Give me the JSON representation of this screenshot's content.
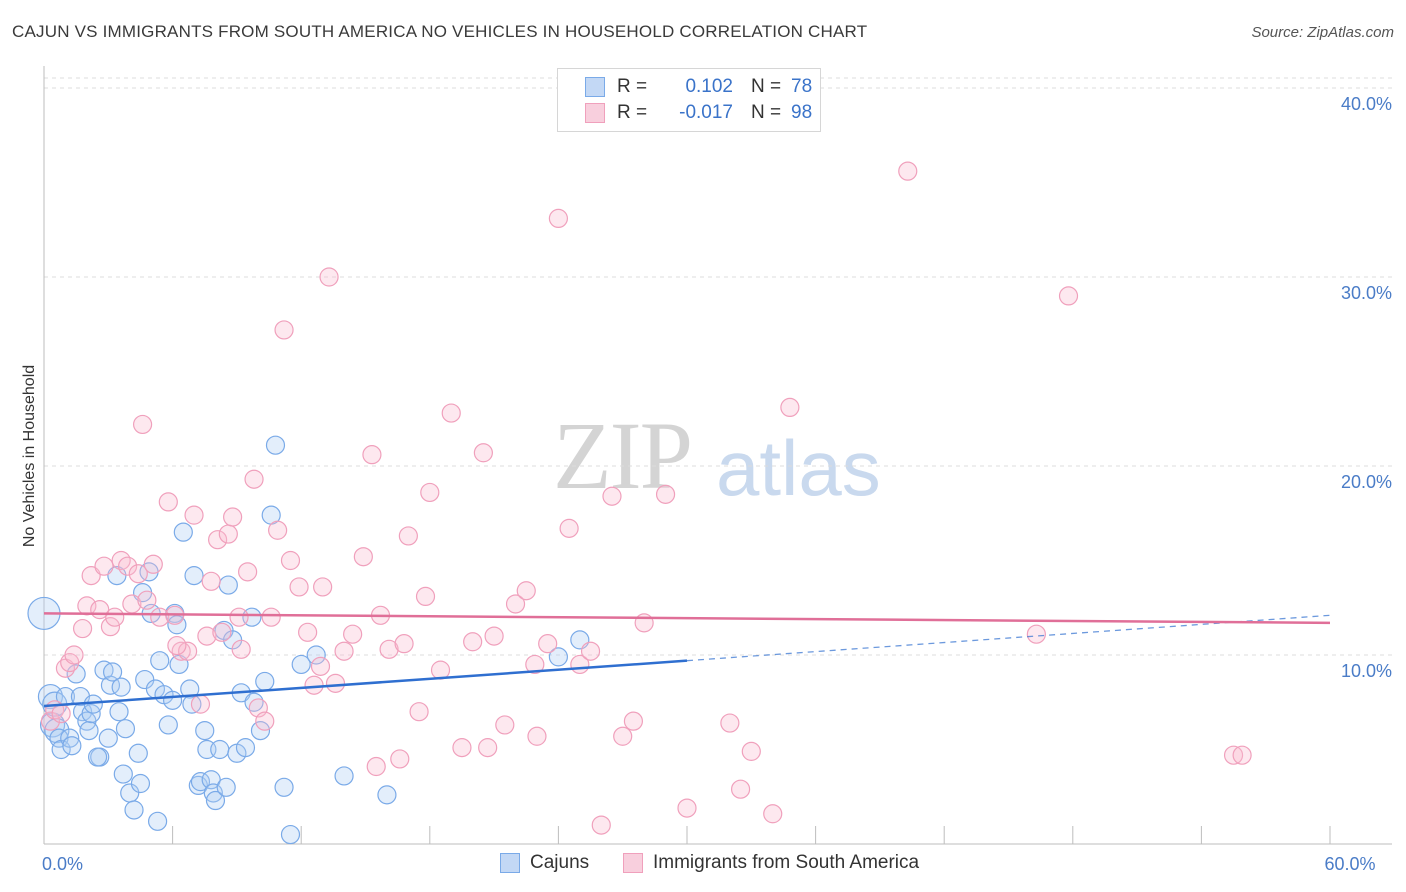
{
  "title": "CAJUN VS IMMIGRANTS FROM SOUTH AMERICA NO VEHICLES IN HOUSEHOLD CORRELATION CHART",
  "source": "Source: ZipAtlas.com",
  "watermark": {
    "zip": "ZIP",
    "atlas": "atlas"
  },
  "legend": {
    "rows": [
      {
        "r_label": "R =",
        "r_value": "0.102",
        "n_label": "N =",
        "n_value": "78",
        "color": "#7aaae8"
      },
      {
        "r_label": "R =",
        "r_value": "-0.017",
        "n_label": "N =",
        "n_value": "98",
        "color": "#f0a0bc"
      }
    ]
  },
  "bottom_legend": {
    "items": [
      {
        "label": "Cajuns",
        "color": "#7aaae8"
      },
      {
        "label": "Immigrants from South America",
        "color": "#f0a0bc"
      }
    ]
  },
  "chart_data": {
    "type": "scatter",
    "title": "CAJUN VS IMMIGRANTS FROM SOUTH AMERICA NO VEHICLES IN HOUSEHOLD CORRELATION CHART",
    "xlabel": "",
    "ylabel": "No Vehicles in Household",
    "xlim": [
      0,
      60
    ],
    "ylim": [
      0,
      41
    ],
    "x_ticks": [
      {
        "value": 0,
        "label": "0.0%"
      },
      {
        "value": 60,
        "label": "60.0%"
      }
    ],
    "y_ticks": [
      {
        "value": 10,
        "label": "10.0%"
      },
      {
        "value": 20,
        "label": "20.0%"
      },
      {
        "value": 30,
        "label": "30.0%"
      },
      {
        "value": 40,
        "label": "40.0%"
      }
    ],
    "series": [
      {
        "name": "Cajuns",
        "color": "#7aaae8",
        "trend": {
          "x0": 0,
          "y0": 7.3,
          "x1": 30,
          "y1": 9.7,
          "dash_to_x": 60,
          "dash_to_y": 12.1
        },
        "points": [
          [
            0,
            12.2
          ],
          [
            0.3,
            7.8
          ],
          [
            0.4,
            6.3
          ],
          [
            0.5,
            7.4
          ],
          [
            0.6,
            6.0
          ],
          [
            0.7,
            5.6
          ],
          [
            0.8,
            5.0
          ],
          [
            1.0,
            7.8
          ],
          [
            1.2,
            5.6
          ],
          [
            1.3,
            5.2
          ],
          [
            1.5,
            9.0
          ],
          [
            1.7,
            7.8
          ],
          [
            1.8,
            7.0
          ],
          [
            2.0,
            6.5
          ],
          [
            2.1,
            6.0
          ],
          [
            2.2,
            6.9
          ],
          [
            2.3,
            7.4
          ],
          [
            2.6,
            4.6
          ],
          [
            2.8,
            9.2
          ],
          [
            3.0,
            5.6
          ],
          [
            3.1,
            8.4
          ],
          [
            3.2,
            9.1
          ],
          [
            3.4,
            14.2
          ],
          [
            3.6,
            8.3
          ],
          [
            3.7,
            3.7
          ],
          [
            3.8,
            6.1
          ],
          [
            4.0,
            2.7
          ],
          [
            4.2,
            1.8
          ],
          [
            4.4,
            4.8
          ],
          [
            4.5,
            3.2
          ],
          [
            4.6,
            13.3
          ],
          [
            4.7,
            8.7
          ],
          [
            4.9,
            14.4
          ],
          [
            5.0,
            12.2
          ],
          [
            5.2,
            8.2
          ],
          [
            5.3,
            1.2
          ],
          [
            5.4,
            9.7
          ],
          [
            5.6,
            7.9
          ],
          [
            5.8,
            6.3
          ],
          [
            6.0,
            7.6
          ],
          [
            6.1,
            12.2
          ],
          [
            6.3,
            9.5
          ],
          [
            6.5,
            16.5
          ],
          [
            6.8,
            8.2
          ],
          [
            6.9,
            7.4
          ],
          [
            7.0,
            14.2
          ],
          [
            7.2,
            3.1
          ],
          [
            7.3,
            3.3
          ],
          [
            7.5,
            6.0
          ],
          [
            7.6,
            5.0
          ],
          [
            7.8,
            3.4
          ],
          [
            7.9,
            2.7
          ],
          [
            8.0,
            2.3
          ],
          [
            8.2,
            5.0
          ],
          [
            8.4,
            11.3
          ],
          [
            8.6,
            13.7
          ],
          [
            8.8,
            10.8
          ],
          [
            9.0,
            4.8
          ],
          [
            9.2,
            8.0
          ],
          [
            9.4,
            5.1
          ],
          [
            9.7,
            12.0
          ],
          [
            9.8,
            7.5
          ],
          [
            10.1,
            6.0
          ],
          [
            10.3,
            8.6
          ],
          [
            10.6,
            17.4
          ],
          [
            10.8,
            21.1
          ],
          [
            11.2,
            3.0
          ],
          [
            11.5,
            0.5
          ],
          [
            12.0,
            9.5
          ],
          [
            12.7,
            10.0
          ],
          [
            14.0,
            3.6
          ],
          [
            16.0,
            2.6
          ],
          [
            24.0,
            9.9
          ],
          [
            25.0,
            10.8
          ],
          [
            2.5,
            4.6
          ],
          [
            3.5,
            7.0
          ],
          [
            8.5,
            3.0
          ],
          [
            6.2,
            11.6
          ]
        ]
      },
      {
        "name": "Immigrants from South America",
        "color": "#f0a0bc",
        "trend": {
          "x0": 0,
          "y0": 12.2,
          "x1": 60,
          "y1": 11.7
        },
        "points": [
          [
            0.3,
            6.5
          ],
          [
            0.5,
            7.1
          ],
          [
            0.8,
            6.9
          ],
          [
            1.0,
            9.3
          ],
          [
            1.2,
            9.6
          ],
          [
            1.4,
            10.0
          ],
          [
            1.8,
            11.4
          ],
          [
            2.0,
            12.6
          ],
          [
            2.2,
            14.2
          ],
          [
            2.6,
            12.4
          ],
          [
            2.8,
            14.7
          ],
          [
            3.1,
            11.5
          ],
          [
            3.3,
            12.0
          ],
          [
            3.6,
            15.0
          ],
          [
            3.9,
            14.7
          ],
          [
            4.1,
            12.7
          ],
          [
            4.4,
            14.3
          ],
          [
            4.6,
            22.2
          ],
          [
            4.8,
            12.9
          ],
          [
            5.1,
            14.8
          ],
          [
            5.4,
            12.0
          ],
          [
            5.8,
            18.1
          ],
          [
            6.1,
            12.1
          ],
          [
            6.4,
            10.2
          ],
          [
            6.7,
            10.2
          ],
          [
            7.0,
            17.4
          ],
          [
            7.3,
            7.4
          ],
          [
            7.6,
            11.0
          ],
          [
            7.8,
            13.9
          ],
          [
            8.1,
            16.1
          ],
          [
            8.3,
            11.2
          ],
          [
            8.6,
            16.4
          ],
          [
            8.8,
            17.3
          ],
          [
            9.2,
            10.3
          ],
          [
            9.5,
            14.4
          ],
          [
            9.8,
            19.3
          ],
          [
            10.0,
            7.2
          ],
          [
            10.3,
            6.5
          ],
          [
            10.6,
            12.0
          ],
          [
            10.9,
            16.6
          ],
          [
            11.2,
            27.2
          ],
          [
            11.5,
            15.0
          ],
          [
            11.9,
            13.6
          ],
          [
            12.3,
            11.2
          ],
          [
            12.6,
            8.4
          ],
          [
            13.0,
            13.6
          ],
          [
            13.3,
            30.0
          ],
          [
            13.6,
            8.5
          ],
          [
            14.0,
            10.2
          ],
          [
            14.4,
            11.1
          ],
          [
            14.9,
            15.2
          ],
          [
            15.3,
            20.6
          ],
          [
            15.7,
            12.1
          ],
          [
            16.1,
            10.3
          ],
          [
            16.6,
            4.5
          ],
          [
            17.0,
            16.3
          ],
          [
            17.5,
            7.0
          ],
          [
            18.0,
            18.6
          ],
          [
            18.5,
            9.2
          ],
          [
            19.0,
            22.8
          ],
          [
            19.5,
            5.1
          ],
          [
            20.0,
            10.7
          ],
          [
            20.5,
            20.7
          ],
          [
            21.0,
            11.0
          ],
          [
            21.5,
            6.3
          ],
          [
            22.0,
            12.7
          ],
          [
            22.5,
            13.4
          ],
          [
            23.0,
            5.7
          ],
          [
            23.5,
            10.6
          ],
          [
            24.0,
            33.1
          ],
          [
            24.5,
            16.7
          ],
          [
            25.0,
            9.5
          ],
          [
            25.5,
            10.2
          ],
          [
            26.0,
            1.0
          ],
          [
            26.5,
            18.4
          ],
          [
            27.0,
            5.7
          ],
          [
            27.5,
            6.5
          ],
          [
            28.0,
            11.7
          ],
          [
            29.0,
            18.5
          ],
          [
            30.0,
            1.9
          ],
          [
            32.0,
            6.4
          ],
          [
            32.5,
            2.9
          ],
          [
            33.0,
            4.9
          ],
          [
            34.0,
            1.6
          ],
          [
            34.8,
            23.1
          ],
          [
            40.3,
            35.6
          ],
          [
            46.3,
            11.1
          ],
          [
            47.8,
            29.0
          ],
          [
            55.5,
            4.7
          ],
          [
            55.9,
            4.7
          ],
          [
            15.5,
            4.1
          ],
          [
            17.8,
            13.1
          ],
          [
            20.7,
            5.1
          ],
          [
            22.9,
            9.5
          ],
          [
            16.8,
            10.6
          ],
          [
            12.9,
            9.4
          ],
          [
            9.1,
            12.0
          ],
          [
            6.2,
            10.5
          ]
        ]
      }
    ]
  }
}
